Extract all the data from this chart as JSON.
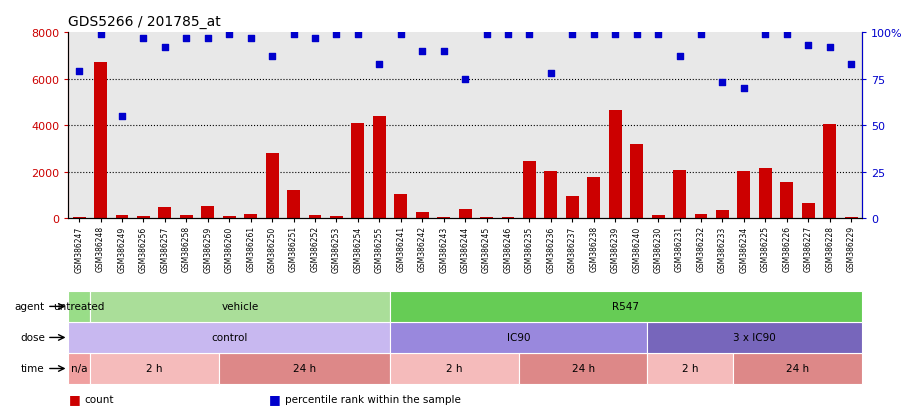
{
  "title": "GDS5266 / 201785_at",
  "samples": [
    "GSM386247",
    "GSM386248",
    "GSM386249",
    "GSM386256",
    "GSM386257",
    "GSM386258",
    "GSM386259",
    "GSM386260",
    "GSM386261",
    "GSM386250",
    "GSM386251",
    "GSM386252",
    "GSM386253",
    "GSM386254",
    "GSM386255",
    "GSM386241",
    "GSM386242",
    "GSM386243",
    "GSM386244",
    "GSM386245",
    "GSM386246",
    "GSM386235",
    "GSM386236",
    "GSM386237",
    "GSM386238",
    "GSM386239",
    "GSM386240",
    "GSM386230",
    "GSM386231",
    "GSM386232",
    "GSM386233",
    "GSM386234",
    "GSM386225",
    "GSM386226",
    "GSM386227",
    "GSM386228",
    "GSM386229"
  ],
  "counts": [
    80,
    6700,
    150,
    100,
    500,
    150,
    550,
    100,
    180,
    2800,
    1200,
    150,
    100,
    4100,
    4400,
    1050,
    260,
    80,
    400,
    80,
    80,
    2450,
    2050,
    950,
    1800,
    4650,
    3200,
    130,
    2100,
    200,
    350,
    2050,
    2150,
    1580,
    650,
    4050,
    80
  ],
  "percentiles": [
    79,
    99,
    55,
    97,
    92,
    97,
    97,
    99,
    97,
    87,
    99,
    97,
    99,
    99,
    83,
    99,
    90,
    90,
    75,
    99,
    99,
    99,
    78,
    99,
    99,
    99,
    99,
    99,
    87,
    99,
    73,
    70,
    99,
    99,
    93,
    92,
    83
  ],
  "bar_color": "#cc0000",
  "dot_color": "#0000cc",
  "ylim_left": [
    0,
    8000
  ],
  "ylim_right": [
    0,
    100
  ],
  "yticks_left": [
    0,
    2000,
    4000,
    6000,
    8000
  ],
  "yticks_right": [
    0,
    25,
    50,
    75,
    100
  ],
  "ytick_labels_right": [
    "0",
    "25",
    "50",
    "75",
    "100%"
  ],
  "grid_values": [
    2000,
    4000,
    6000
  ],
  "plot_bg": "#e8e8e8",
  "agent_row": {
    "label": "agent",
    "segments": [
      {
        "text": "untreated",
        "start": 0,
        "end": 1,
        "color": "#99dd88"
      },
      {
        "text": "vehicle",
        "start": 1,
        "end": 15,
        "color": "#aade99"
      },
      {
        "text": "R547",
        "start": 15,
        "end": 37,
        "color": "#66cc55"
      }
    ]
  },
  "dose_row": {
    "label": "dose",
    "segments": [
      {
        "text": "control",
        "start": 0,
        "end": 15,
        "color": "#c8b8f0"
      },
      {
        "text": "IC90",
        "start": 15,
        "end": 27,
        "color": "#9988dd"
      },
      {
        "text": "3 x IC90",
        "start": 27,
        "end": 37,
        "color": "#7766bb"
      }
    ]
  },
  "time_row": {
    "label": "time",
    "segments": [
      {
        "text": "n/a",
        "start": 0,
        "end": 1,
        "color": "#f0a0a0"
      },
      {
        "text": "2 h",
        "start": 1,
        "end": 7,
        "color": "#f5bbbb"
      },
      {
        "text": "24 h",
        "start": 7,
        "end": 15,
        "color": "#dd8888"
      },
      {
        "text": "2 h",
        "start": 15,
        "end": 21,
        "color": "#f5bbbb"
      },
      {
        "text": "24 h",
        "start": 21,
        "end": 27,
        "color": "#dd8888"
      },
      {
        "text": "2 h",
        "start": 27,
        "end": 31,
        "color": "#f5bbbb"
      },
      {
        "text": "24 h",
        "start": 31,
        "end": 37,
        "color": "#dd8888"
      }
    ]
  },
  "legend_items": [
    {
      "color": "#cc0000",
      "label": "count"
    },
    {
      "color": "#0000cc",
      "label": "percentile rank within the sample"
    }
  ]
}
